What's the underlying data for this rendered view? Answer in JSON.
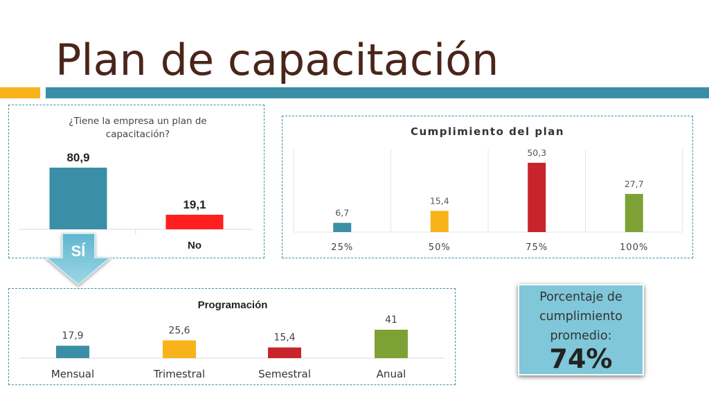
{
  "slide": {
    "title": "Plan de capacitación"
  },
  "charts": {
    "has_plan": {
      "title": "¿Tiene la empresa un plan de capacitación?",
      "title_lines": [
        "¿Tiene la empresa un plan de",
        "capacitación?"
      ],
      "categories": [
        "SÍ",
        "No"
      ],
      "values": [
        80.9,
        19.1
      ],
      "value_labels": [
        "80,9",
        "19,1"
      ],
      "colors": [
        "#3a8fa6",
        "#ff1f1f"
      ]
    },
    "compliance": {
      "title": "Cumplimiento del plan",
      "categories": [
        "25%",
        "50%",
        "75%",
        "100%"
      ],
      "values": [
        6.7,
        15.4,
        50.3,
        27.7
      ],
      "value_labels": [
        "6,7",
        "15,4",
        "50,3",
        "27,7"
      ],
      "colors": [
        "#3a8fa6",
        "#f8b21a",
        "#c8242c",
        "#7ea135"
      ]
    },
    "schedule": {
      "title": "Programación",
      "categories": [
        "Mensual",
        "Trimestral",
        "Semestral",
        "Anual"
      ],
      "values": [
        17.9,
        25.6,
        15.4,
        41
      ],
      "value_labels": [
        "17,9",
        "25,6",
        "15,4",
        "41"
      ],
      "colors": [
        "#3a8fa6",
        "#f8b21a",
        "#c8242c",
        "#7ea135"
      ]
    }
  },
  "callout": {
    "label_lines": [
      "Porcentaje de",
      "cumplimiento",
      "promedio:"
    ],
    "value": "74%"
  },
  "chart_data": [
    {
      "type": "bar",
      "title": "¿Tiene la empresa un plan de capacitación?",
      "categories": [
        "SÍ",
        "No"
      ],
      "values": [
        80.9,
        19.1
      ]
    },
    {
      "type": "bar",
      "title": "Cumplimiento del plan",
      "categories": [
        "25%",
        "50%",
        "75%",
        "100%"
      ],
      "values": [
        6.7,
        15.4,
        50.3,
        27.7
      ]
    },
    {
      "type": "bar",
      "title": "Programación",
      "categories": [
        "Mensual",
        "Trimestral",
        "Semestral",
        "Anual"
      ],
      "values": [
        17.9,
        25.6,
        15.4,
        41
      ]
    }
  ]
}
